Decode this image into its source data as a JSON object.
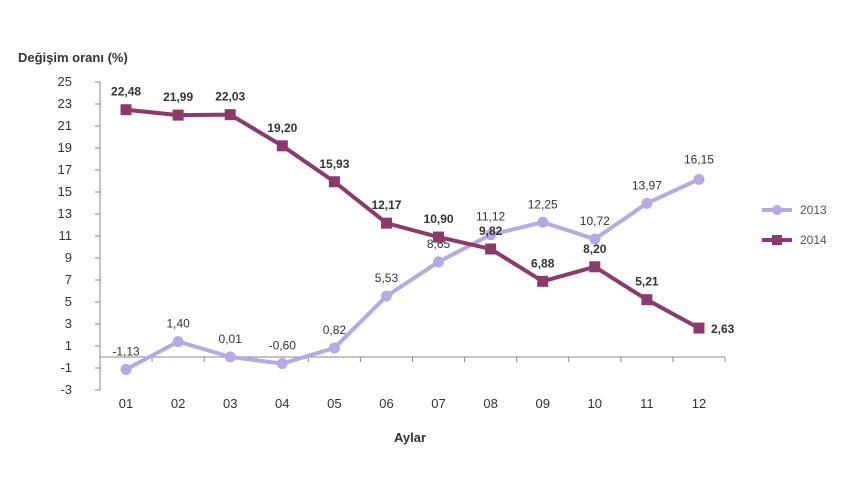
{
  "chart_data": {
    "type": "line",
    "ylabel": "Değişim oranı (%)",
    "xlabel": "Aylar",
    "categories": [
      "01",
      "02",
      "03",
      "04",
      "05",
      "06",
      "07",
      "08",
      "09",
      "10",
      "11",
      "12"
    ],
    "ylim": [
      -3,
      25
    ],
    "yticks": [
      25,
      23,
      21,
      19,
      17,
      15,
      13,
      11,
      9,
      7,
      5,
      3,
      1,
      -1,
      -3
    ],
    "series": [
      {
        "name": "2013",
        "color": "#b7a9e6",
        "marker": "circle",
        "values": [
          -1.13,
          1.4,
          0.01,
          -0.6,
          0.82,
          5.53,
          8.65,
          11.12,
          12.25,
          10.72,
          13.97,
          16.15
        ],
        "labels": [
          "-1,13",
          "1,40",
          "0,01",
          "-0,60",
          "0,82",
          "5,53",
          "8,65",
          "11,12",
          "12,25",
          "10,72",
          "13,97",
          "16,15"
        ]
      },
      {
        "name": "2014",
        "color": "#8b3a6b",
        "marker": "square",
        "values": [
          22.48,
          21.99,
          22.03,
          19.2,
          15.93,
          12.17,
          10.9,
          9.82,
          6.88,
          8.2,
          5.21,
          2.63
        ],
        "labels": [
          "22,48",
          "21,99",
          "22,03",
          "19,20",
          "15,93",
          "12,17",
          "10,90",
          "9,82",
          "6,88",
          "8,20",
          "5,21",
          "2,63"
        ]
      }
    ],
    "grid": false,
    "legend_position": "right"
  }
}
